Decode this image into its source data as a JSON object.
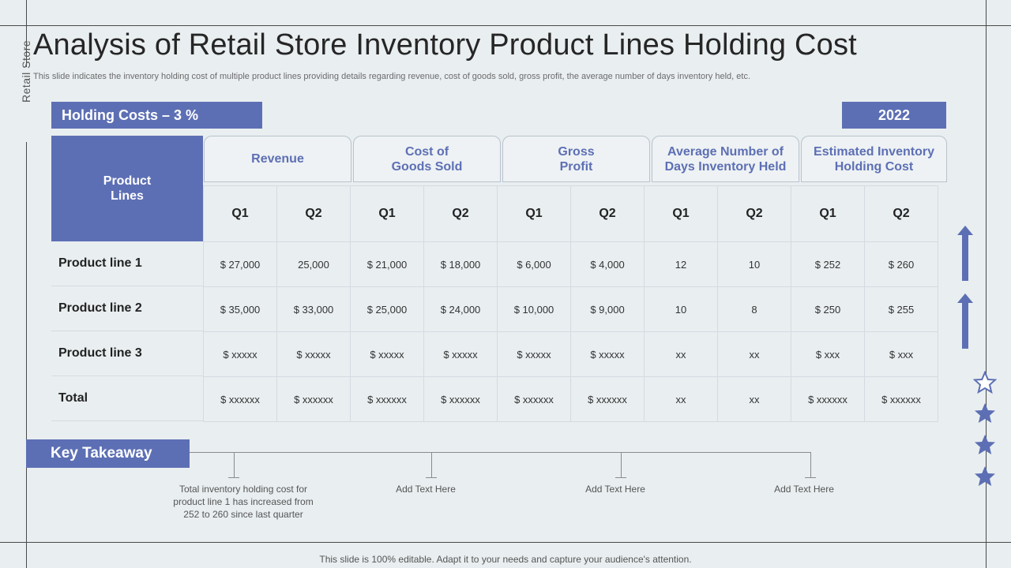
{
  "side_label": "Retail Store",
  "title": "Analysis of Retail Store Inventory Product Lines Holding Cost",
  "subtitle": "This slide indicates the inventory holding cost of multiple product lines providing details regarding revenue, cost of goods sold, gross profit, the average number of days inventory held, etc.",
  "holding_costs_label": "Holding Costs – 3 %",
  "year_label": "2022",
  "table": {
    "product_header": "Product\nLines",
    "groups": [
      "Revenue",
      "Cost of\nGoods Sold",
      "Gross\nProfit",
      "Average Number of\nDays Inventory Held",
      "Estimated Inventory\nHolding Cost"
    ],
    "quarters": [
      "Q1",
      "Q2",
      "Q1",
      "Q2",
      "Q1",
      "Q2",
      "Q1",
      "Q2",
      "Q1",
      "Q2"
    ],
    "rows": [
      {
        "label": "Product line 1",
        "cells": [
          "$ 27,000",
          "25,000",
          "$ 21,000",
          "$ 18,000",
          "$ 6,000",
          "$ 4,000",
          "12",
          "10",
          "$ 252",
          "$ 260"
        ]
      },
      {
        "label": "Product line 2",
        "cells": [
          "$ 35,000",
          "$ 33,000",
          "$ 25,000",
          "$ 24,000",
          "$ 10,000",
          "$ 9,000",
          "10",
          "8",
          "$ 250",
          "$ 255"
        ]
      },
      {
        "label": "Product line 3",
        "cells": [
          "$ xxxxx",
          "$ xxxxx",
          "$ xxxxx",
          "$ xxxxx",
          "$ xxxxx",
          "$ xxxxx",
          "xx",
          "xx",
          "$ xxx",
          "$ xxx"
        ]
      },
      {
        "label": "Total",
        "cells": [
          "$ xxxxxx",
          "$ xxxxxx",
          "$ xxxxxx",
          "$ xxxxxx",
          "$ xxxxxx",
          "$ xxxxxx",
          "xx",
          "xx",
          "$ xxxxxx",
          "$ xxxxxx"
        ]
      }
    ]
  },
  "key_takeaway": {
    "label": "Key Takeaway",
    "notes": [
      "Total inventory  holding cost for product line 1 has increased from 252 to 260 since last quarter",
      "Add Text Here",
      "Add Text Here",
      "Add Text Here"
    ]
  },
  "footer": "This slide is 100% editable. Adapt it to your needs and capture your audience's attention.",
  "colors": {
    "accent": "#5d6fb4",
    "background": "#e9eef0"
  },
  "icons": [
    "up-arrow-icon",
    "up-arrow-icon",
    "star-outline-icon",
    "star-icon",
    "star-icon",
    "star-icon"
  ]
}
